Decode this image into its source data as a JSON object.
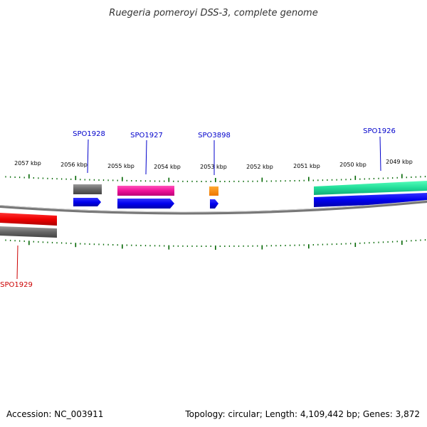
{
  "title": "Ruegeria pomeroyi DSS-3, complete genome",
  "footer": {
    "accession": "Accession: NC_003911",
    "summary": "Topology: circular; Length: 4,109,442 bp; Genes: 3,872"
  },
  "ruler": {
    "labels": [
      "2057 kbp",
      "2056 kbp",
      "2055 kbp",
      "2054 kbp",
      "2053 kbp",
      "2052 kbp",
      "2051 kbp",
      "2050 kbp",
      "2049 kbp"
    ]
  },
  "genes": [
    {
      "name": "SPO1928",
      "color": "#0000cc"
    },
    {
      "name": "SPO1927",
      "color": "#0000cc"
    },
    {
      "name": "SPO3898",
      "color": "#0000cc"
    },
    {
      "name": "SPO1926",
      "color": "#0000cc"
    },
    {
      "name": "SPO1929",
      "color": "#cc0000"
    }
  ],
  "colors": {
    "tick": "#006600",
    "backbone": "#888888",
    "cds_forward": "#0000ff",
    "cds_reverse": "#ff0000",
    "feature_gray": "#666666",
    "feature_pink": "#ee1199",
    "feature_orange": "#ff8800",
    "feature_green": "#22dd99"
  }
}
